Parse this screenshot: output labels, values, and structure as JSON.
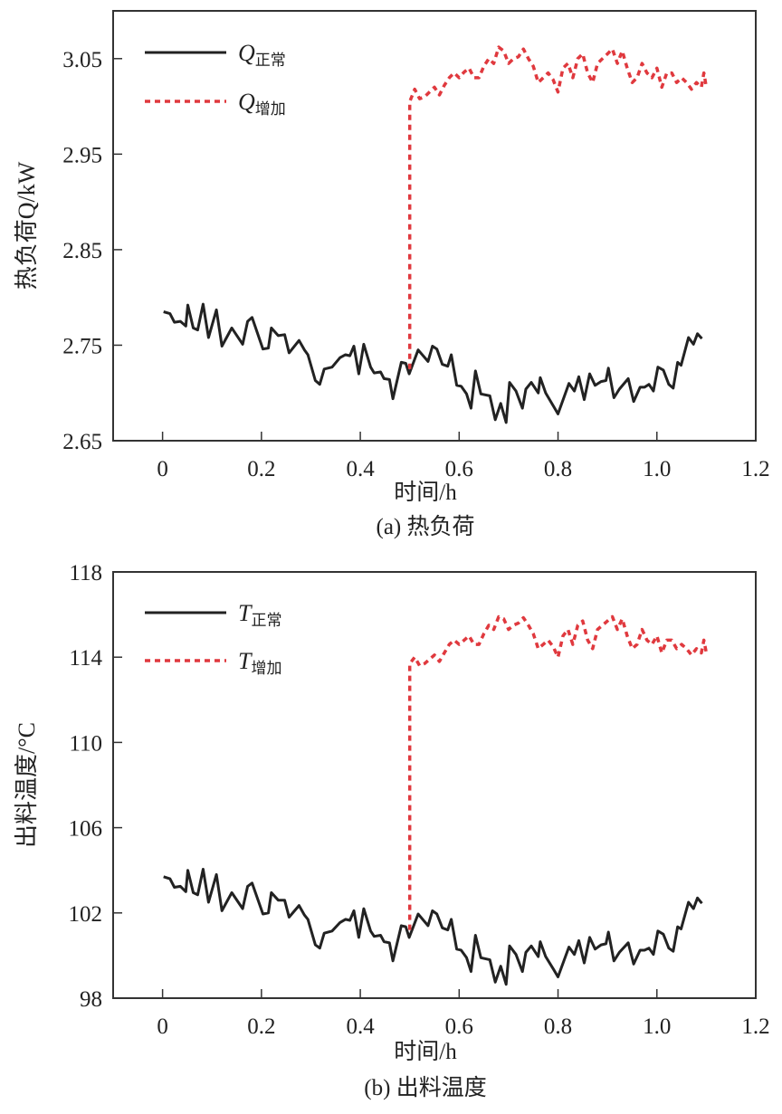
{
  "chart_data": [
    {
      "type": "line",
      "panel_label": "(a) 热负荷",
      "xlabel": "时间/h",
      "ylabel": "热负荷Q/kW",
      "xlim": [
        -0.1,
        1.2
      ],
      "ylim": [
        2.65,
        3.1
      ],
      "xticks": [
        "0",
        "0.2",
        "0.4",
        "0.6",
        "0.8",
        "1.0",
        "1.2"
      ],
      "xtick_values": [
        0,
        0.2,
        0.4,
        0.6,
        0.8,
        1.0,
        1.2
      ],
      "yticks": [
        "2.65",
        "2.75",
        "2.85",
        "2.95",
        "3.05"
      ],
      "ytick_values": [
        2.65,
        2.75,
        2.85,
        2.95,
        3.05
      ],
      "legend_position": "top-left",
      "series": [
        {
          "name": "Q",
          "subscript": "正常",
          "color": "#222222",
          "style": "solid",
          "x": [
            0.002,
            0.015,
            0.024,
            0.036,
            0.047,
            0.051,
            0.062,
            0.071,
            0.082,
            0.093,
            0.109,
            0.12,
            0.14,
            0.162,
            0.172,
            0.181,
            0.203,
            0.214,
            0.22,
            0.234,
            0.247,
            0.256,
            0.276,
            0.287,
            0.294,
            0.309,
            0.318,
            0.327,
            0.343,
            0.359,
            0.37,
            0.379,
            0.387,
            0.397,
            0.407,
            0.421,
            0.428,
            0.441,
            0.448,
            0.459,
            0.466,
            0.483,
            0.492,
            0.499,
            0.517,
            0.537,
            0.546,
            0.555,
            0.566,
            0.577,
            0.584,
            0.595,
            0.604,
            0.615,
            0.624,
            0.633,
            0.644,
            0.662,
            0.673,
            0.684,
            0.695,
            0.702,
            0.715,
            0.728,
            0.735,
            0.746,
            0.76,
            0.764,
            0.775,
            0.791,
            0.8,
            0.822,
            0.833,
            0.842,
            0.853,
            0.864,
            0.875,
            0.887,
            0.897,
            0.902,
            0.913,
            0.924,
            0.942,
            0.953,
            0.966,
            0.975,
            0.984,
            0.993,
            1.002,
            1.013,
            1.024,
            1.033,
            1.042,
            1.049,
            1.064,
            1.074,
            1.082,
            1.091
          ],
          "y": [
            2.785,
            2.783,
            2.774,
            2.775,
            2.77,
            2.792,
            2.768,
            2.766,
            2.793,
            2.758,
            2.787,
            2.749,
            2.768,
            2.751,
            2.775,
            2.779,
            2.746,
            2.747,
            2.768,
            2.76,
            2.761,
            2.742,
            2.755,
            2.745,
            2.74,
            2.713,
            2.709,
            2.725,
            2.727,
            2.737,
            2.74,
            2.739,
            2.749,
            2.72,
            2.751,
            2.727,
            2.721,
            2.722,
            2.715,
            2.714,
            2.694,
            2.732,
            2.731,
            2.72,
            2.745,
            2.733,
            2.749,
            2.746,
            2.73,
            2.728,
            2.74,
            2.708,
            2.707,
            2.699,
            2.684,
            2.723,
            2.699,
            2.697,
            2.672,
            2.689,
            2.669,
            2.711,
            2.702,
            2.684,
            2.704,
            2.711,
            2.7,
            2.716,
            2.7,
            2.686,
            2.678,
            2.71,
            2.702,
            2.717,
            2.693,
            2.72,
            2.708,
            2.712,
            2.713,
            2.726,
            2.695,
            2.704,
            2.715,
            2.691,
            2.706,
            2.706,
            2.709,
            2.702,
            2.727,
            2.724,
            2.709,
            2.705,
            2.732,
            2.729,
            2.758,
            2.751,
            2.762,
            2.757
          ]
        },
        {
          "name": "Q",
          "subscript": "增加",
          "color": "#e0393e",
          "style": "dashed",
          "x": [
            0.5,
            0.5,
            0.51,
            0.52,
            0.53,
            0.54,
            0.55,
            0.56,
            0.57,
            0.58,
            0.59,
            0.6,
            0.61,
            0.62,
            0.63,
            0.64,
            0.65,
            0.66,
            0.67,
            0.68,
            0.69,
            0.7,
            0.71,
            0.72,
            0.73,
            0.74,
            0.75,
            0.76,
            0.77,
            0.78,
            0.79,
            0.8,
            0.81,
            0.82,
            0.83,
            0.84,
            0.85,
            0.86,
            0.87,
            0.88,
            0.89,
            0.9,
            0.91,
            0.92,
            0.93,
            0.94,
            0.95,
            0.96,
            0.97,
            0.98,
            0.99,
            1.0,
            1.01,
            1.02,
            1.03,
            1.04,
            1.05,
            1.06,
            1.07,
            1.08,
            1.09,
            1.095,
            1.1
          ],
          "y": [
            2.725,
            3.005,
            3.018,
            3.008,
            3.01,
            3.015,
            3.02,
            3.012,
            3.022,
            3.03,
            3.035,
            3.03,
            3.036,
            3.04,
            3.03,
            3.03,
            3.042,
            3.05,
            3.045,
            3.062,
            3.058,
            3.045,
            3.05,
            3.052,
            3.06,
            3.05,
            3.042,
            3.025,
            3.03,
            3.035,
            3.028,
            3.015,
            3.04,
            3.045,
            3.03,
            3.05,
            3.055,
            3.035,
            3.025,
            3.045,
            3.05,
            3.055,
            3.06,
            3.045,
            3.058,
            3.04,
            3.025,
            3.03,
            3.045,
            3.035,
            3.03,
            3.04,
            3.02,
            3.035,
            3.035,
            3.025,
            3.03,
            3.025,
            3.018,
            3.025,
            3.02,
            3.035,
            3.02
          ]
        }
      ]
    },
    {
      "type": "line",
      "panel_label": "(b) 出料温度",
      "xlabel": "时间/h",
      "ylabel": "出料温度/°C",
      "xlim": [
        -0.1,
        1.2
      ],
      "ylim": [
        98,
        118
      ],
      "xticks": [
        "0",
        "0.2",
        "0.4",
        "0.6",
        "0.8",
        "1.0",
        "1.2"
      ],
      "xtick_values": [
        0,
        0.2,
        0.4,
        0.6,
        0.8,
        1.0,
        1.2
      ],
      "yticks": [
        "98",
        "102",
        "106",
        "110",
        "114",
        "118"
      ],
      "ytick_values": [
        98,
        102,
        106,
        110,
        114,
        118
      ],
      "legend_position": "top-left",
      "series": [
        {
          "name": "T",
          "subscript": "正常",
          "color": "#222222",
          "style": "solid",
          "x": [
            0.002,
            0.015,
            0.024,
            0.036,
            0.047,
            0.051,
            0.062,
            0.071,
            0.082,
            0.093,
            0.109,
            0.12,
            0.14,
            0.162,
            0.172,
            0.181,
            0.203,
            0.214,
            0.22,
            0.234,
            0.247,
            0.256,
            0.276,
            0.287,
            0.294,
            0.309,
            0.318,
            0.327,
            0.343,
            0.359,
            0.37,
            0.379,
            0.387,
            0.397,
            0.407,
            0.421,
            0.428,
            0.441,
            0.448,
            0.459,
            0.466,
            0.483,
            0.492,
            0.499,
            0.517,
            0.537,
            0.546,
            0.555,
            0.566,
            0.577,
            0.584,
            0.595,
            0.604,
            0.615,
            0.624,
            0.633,
            0.644,
            0.662,
            0.673,
            0.684,
            0.695,
            0.702,
            0.715,
            0.728,
            0.735,
            0.746,
            0.76,
            0.764,
            0.775,
            0.791,
            0.8,
            0.822,
            0.833,
            0.842,
            0.853,
            0.864,
            0.875,
            0.887,
            0.897,
            0.902,
            0.913,
            0.924,
            0.942,
            0.953,
            0.966,
            0.975,
            0.984,
            0.993,
            1.002,
            1.013,
            1.024,
            1.033,
            1.042,
            1.049,
            1.064,
            1.074,
            1.082,
            1.091
          ],
          "y": [
            103.7,
            103.6,
            103.2,
            103.25,
            103.0,
            104.0,
            102.95,
            102.85,
            104.05,
            102.5,
            103.8,
            102.1,
            102.95,
            102.2,
            103.25,
            103.4,
            101.95,
            102.0,
            102.95,
            102.6,
            102.6,
            101.8,
            102.35,
            101.9,
            101.7,
            100.5,
            100.35,
            101.05,
            101.15,
            101.55,
            101.7,
            101.65,
            102.1,
            100.85,
            102.2,
            101.15,
            100.9,
            100.95,
            100.65,
            100.6,
            99.75,
            101.4,
            101.35,
            100.85,
            101.95,
            101.4,
            102.1,
            101.95,
            101.3,
            101.2,
            101.7,
            100.3,
            100.25,
            99.9,
            99.25,
            100.95,
            99.9,
            99.8,
            98.75,
            99.5,
            98.65,
            100.45,
            100.05,
            99.25,
            100.15,
            100.45,
            99.95,
            100.65,
            99.95,
            99.35,
            99.0,
            100.4,
            100.05,
            100.7,
            99.65,
            100.85,
            100.3,
            100.5,
            100.55,
            101.1,
            99.75,
            100.15,
            100.6,
            99.6,
            100.25,
            100.25,
            100.35,
            100.05,
            101.15,
            101.0,
            100.35,
            100.2,
            101.35,
            101.25,
            102.5,
            102.2,
            102.7,
            102.45
          ]
        },
        {
          "name": "T",
          "subscript": "增加",
          "color": "#e0393e",
          "style": "dashed",
          "x": [
            0.5,
            0.5,
            0.51,
            0.52,
            0.53,
            0.54,
            0.55,
            0.56,
            0.57,
            0.58,
            0.59,
            0.6,
            0.61,
            0.62,
            0.63,
            0.64,
            0.65,
            0.66,
            0.67,
            0.68,
            0.69,
            0.7,
            0.71,
            0.72,
            0.73,
            0.74,
            0.75,
            0.76,
            0.77,
            0.78,
            0.79,
            0.8,
            0.81,
            0.82,
            0.83,
            0.84,
            0.85,
            0.86,
            0.87,
            0.88,
            0.89,
            0.9,
            0.91,
            0.92,
            0.93,
            0.94,
            0.95,
            0.96,
            0.97,
            0.98,
            0.99,
            1.0,
            1.01,
            1.02,
            1.03,
            1.04,
            1.05,
            1.06,
            1.07,
            1.08,
            1.09,
            1.095,
            1.1
          ],
          "y": [
            101.2,
            113.7,
            114.0,
            113.6,
            113.7,
            113.9,
            114.1,
            113.8,
            114.2,
            114.6,
            114.8,
            114.6,
            114.8,
            115.0,
            114.6,
            114.6,
            115.1,
            115.5,
            115.3,
            115.9,
            115.8,
            115.3,
            115.5,
            115.6,
            115.85,
            115.5,
            115.1,
            114.4,
            114.6,
            114.8,
            114.5,
            114.0,
            115.0,
            115.3,
            114.6,
            115.5,
            115.7,
            114.8,
            114.4,
            115.3,
            115.5,
            115.7,
            115.9,
            115.3,
            115.8,
            115.0,
            114.4,
            114.6,
            115.3,
            114.8,
            114.6,
            115.0,
            114.2,
            114.8,
            114.8,
            114.4,
            114.6,
            114.4,
            114.1,
            114.4,
            114.2,
            114.8,
            114.2
          ]
        }
      ]
    }
  ]
}
